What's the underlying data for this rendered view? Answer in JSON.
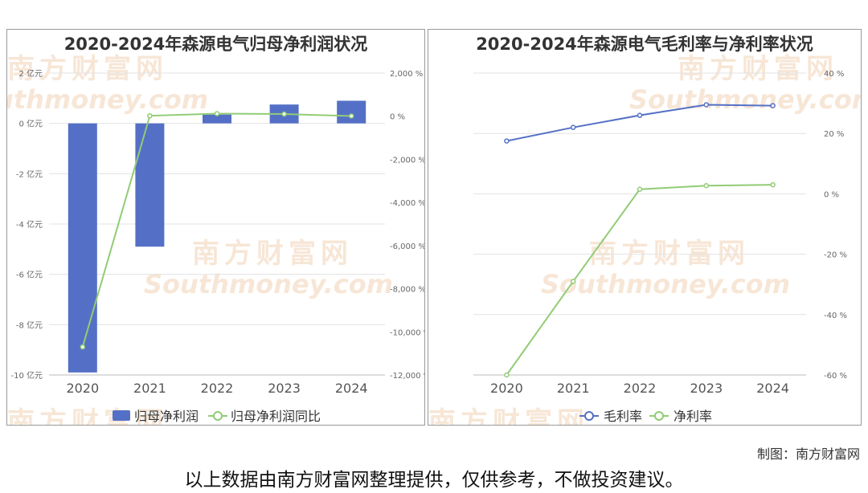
{
  "watermark": {
    "cn": "南方财富网",
    "en": "Southmoney.com"
  },
  "footer": {
    "credit": "制图：南方财富网",
    "note": "以上数据由南方财富网整理提供，仅供参考，不做投资建议。"
  },
  "chart_data": [
    {
      "type": "bar",
      "title": "2020-2024年森源电气归母净利润状况",
      "categories": [
        "2020",
        "2021",
        "2022",
        "2023",
        "2024"
      ],
      "left_axis": {
        "ticks": [
          "2 亿元",
          "0 亿元",
          "-2 亿元",
          "-4 亿元",
          "-6 亿元",
          "-8 亿元",
          "-10 亿元"
        ],
        "ylim": [
          -10,
          2
        ]
      },
      "right_axis": {
        "ticks": [
          "2,000 %",
          "0 %",
          "-2,000 %",
          "-4,000 %",
          "-6,000 %",
          "-8,000 %",
          "-10,000 %",
          "-12,000 %"
        ],
        "ylim": [
          -12000,
          2000
        ]
      },
      "series": [
        {
          "name": "归母净利润",
          "kind": "bar",
          "axis": "left",
          "color": "#5470c6",
          "values": [
            -9.9,
            -4.9,
            0.35,
            0.75,
            0.9
          ]
        },
        {
          "name": "归母净利润同比",
          "kind": "line",
          "axis": "right",
          "color": "#91cc75",
          "values": [
            -10700,
            20,
            120,
            100,
            10
          ]
        }
      ],
      "grid": true,
      "legend_position": "bottom"
    },
    {
      "type": "line",
      "title": "2020-2024年森源电气毛利率与净利率状况",
      "categories": [
        "2020",
        "2021",
        "2022",
        "2023",
        "2024"
      ],
      "right_axis": {
        "ticks": [
          "40 %",
          "20 %",
          "0 %",
          "-20 %",
          "-40 %",
          "-60 %"
        ],
        "ylim": [
          -60,
          40
        ]
      },
      "series": [
        {
          "name": "毛利率",
          "kind": "line",
          "axis": "right",
          "color": "#5470c6",
          "values": [
            17.5,
            22,
            26,
            29.5,
            29.2
          ]
        },
        {
          "name": "净利率",
          "kind": "line",
          "axis": "right",
          "color": "#91cc75",
          "values": [
            -60,
            -29,
            1.5,
            2.7,
            3
          ]
        }
      ],
      "grid": true,
      "legend_position": "bottom"
    }
  ]
}
